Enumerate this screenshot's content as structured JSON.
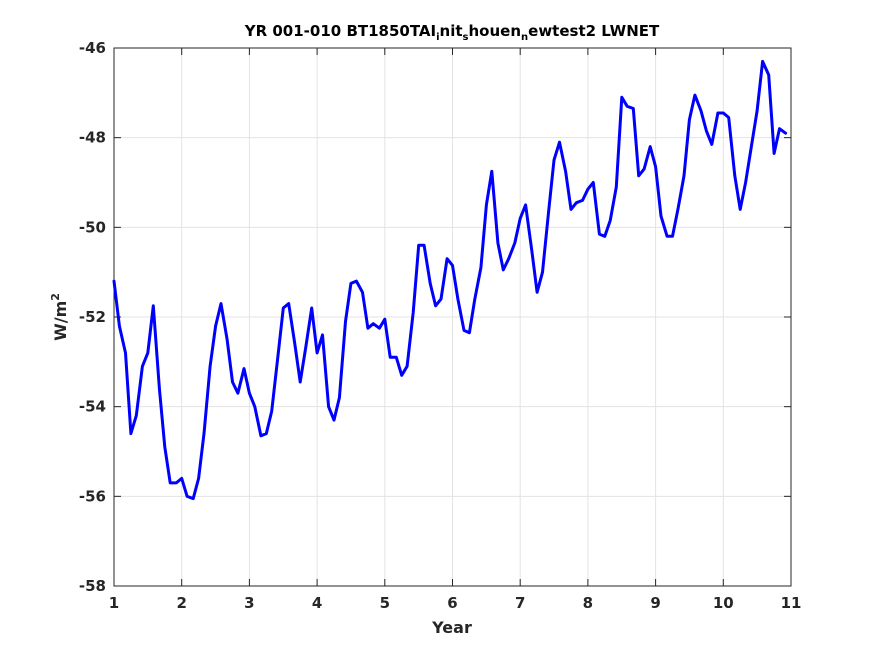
{
  "chart_data": {
    "type": "line",
    "title": {
      "part1": "YR 001-010 BT1850TAI",
      "sub1": "i",
      "part2": "nit",
      "sub2": "s",
      "part3": "houen",
      "sub3": "n",
      "part4": "ewtest2 LWNET"
    },
    "xlabel": "Year",
    "ylabel": {
      "base": "W/m",
      "sup": "2"
    },
    "xlim": [
      1,
      11
    ],
    "ylim": [
      -58,
      -46
    ],
    "xticks": [
      "1",
      "2",
      "3",
      "4",
      "5",
      "6",
      "7",
      "8",
      "9",
      "10",
      "11"
    ],
    "yticks": [
      "-58",
      "-56",
      "-54",
      "-52",
      "-50",
      "-48",
      "-46"
    ],
    "grid": true,
    "line_color": "#0000ff",
    "series": [
      {
        "x": [
          1.0,
          1.08,
          1.17,
          1.25,
          1.33,
          1.42,
          1.5,
          1.58,
          1.67,
          1.75,
          1.83,
          1.92,
          2.0,
          2.08,
          2.17,
          2.25,
          2.33,
          2.42,
          2.5,
          2.58,
          2.67,
          2.75,
          2.83,
          2.92,
          3.0,
          3.08,
          3.17,
          3.25,
          3.33,
          3.42,
          3.5,
          3.58,
          3.67,
          3.75,
          3.83,
          3.92,
          4.0,
          4.08,
          4.17,
          4.25,
          4.33,
          4.42,
          4.5,
          4.58,
          4.67,
          4.75,
          4.83,
          4.92,
          5.0,
          5.08,
          5.17,
          5.25,
          5.33,
          5.42,
          5.5,
          5.58,
          5.67,
          5.75,
          5.83,
          5.92,
          6.0,
          6.08,
          6.17,
          6.25,
          6.33,
          6.42,
          6.5,
          6.58,
          6.67,
          6.75,
          6.83,
          6.92,
          7.0,
          7.08,
          7.17,
          7.25,
          7.33,
          7.42,
          7.5,
          7.58,
          7.67,
          7.75,
          7.83,
          7.92,
          8.0,
          8.08,
          8.17,
          8.25,
          8.33,
          8.42,
          8.5,
          8.58,
          8.67,
          8.75,
          8.83,
          8.92,
          9.0,
          9.08,
          9.17,
          9.25,
          9.33,
          9.42,
          9.5,
          9.58,
          9.67,
          9.75,
          9.83,
          9.92,
          10.0,
          10.08,
          10.17,
          10.25,
          10.33,
          10.42,
          10.5,
          10.58,
          10.67,
          10.75,
          10.83,
          10.92
        ],
        "y": [
          -51.2,
          -52.2,
          -52.8,
          -54.6,
          -54.2,
          -53.1,
          -52.8,
          -51.75,
          -53.6,
          -54.9,
          -55.7,
          -55.7,
          -55.6,
          -56.0,
          -56.05,
          -55.6,
          -54.6,
          -53.1,
          -52.2,
          -51.7,
          -52.5,
          -53.45,
          -53.7,
          -53.15,
          -53.7,
          -54.0,
          -54.65,
          -54.6,
          -54.1,
          -52.9,
          -51.8,
          -51.7,
          -52.6,
          -53.45,
          -52.7,
          -51.8,
          -52.8,
          -52.4,
          -54.0,
          -54.3,
          -53.8,
          -52.1,
          -51.25,
          -51.2,
          -51.45,
          -52.25,
          -52.15,
          -52.25,
          -52.05,
          -52.9,
          -52.9,
          -53.3,
          -53.1,
          -51.9,
          -50.4,
          -50.4,
          -51.25,
          -51.75,
          -51.6,
          -50.7,
          -50.85,
          -51.6,
          -52.3,
          -52.35,
          -51.6,
          -50.9,
          -49.5,
          -48.75,
          -50.35,
          -50.95,
          -50.7,
          -50.35,
          -49.8,
          -49.5,
          -50.5,
          -51.45,
          -51.0,
          -49.65,
          -48.5,
          -48.1,
          -48.75,
          -49.6,
          -49.45,
          -49.4,
          -49.15,
          -49.0,
          -50.15,
          -50.2,
          -49.85,
          -49.1,
          -47.1,
          -47.3,
          -47.35,
          -48.85,
          -48.7,
          -48.2,
          -48.65,
          -49.75,
          -50.2,
          -50.2,
          -49.6,
          -48.85,
          -47.6,
          -47.05,
          -47.4,
          -47.85,
          -48.15,
          -47.45,
          -47.45,
          -47.55,
          -48.85,
          -49.6,
          -49.0,
          -48.15,
          -47.4,
          -46.3,
          -46.6,
          -48.35,
          -47.8,
          -47.9
        ]
      }
    ]
  }
}
